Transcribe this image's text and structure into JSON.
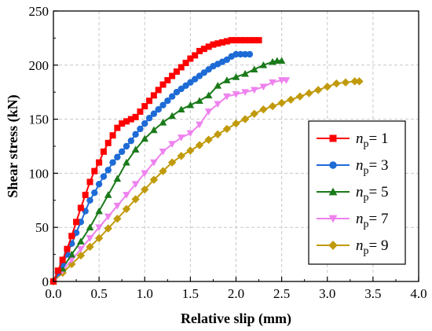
{
  "chart_data": {
    "type": "line",
    "title": "",
    "xlabel": "Relative slip (mm)",
    "ylabel": "Shear stress (kN)",
    "xlim": [
      0,
      4.0
    ],
    "ylim": [
      0,
      250
    ],
    "xticks": [
      "0.0",
      "0.5",
      "1.0",
      "1.5",
      "2.0",
      "2.5",
      "3.0",
      "3.5",
      "4.0"
    ],
    "yticks": [
      "0",
      "50",
      "100",
      "150",
      "200",
      "250"
    ],
    "grid": true,
    "legend_position": "right",
    "series": [
      {
        "name": "np = 1",
        "label_symbol": "n",
        "label_sub": "p",
        "label_value": "= 1",
        "color": "#ff0000",
        "marker": "square",
        "x": [
          0.0,
          0.05,
          0.1,
          0.15,
          0.2,
          0.25,
          0.3,
          0.35,
          0.4,
          0.45,
          0.5,
          0.55,
          0.6,
          0.65,
          0.7,
          0.75,
          0.8,
          0.85,
          0.9,
          0.95,
          1.0,
          1.05,
          1.1,
          1.15,
          1.2,
          1.25,
          1.3,
          1.35,
          1.4,
          1.45,
          1.5,
          1.55,
          1.6,
          1.65,
          1.7,
          1.75,
          1.8,
          1.85,
          1.9,
          1.95,
          2.0,
          2.05,
          2.1,
          2.15,
          2.2,
          2.25
        ],
        "y": [
          0,
          10,
          20,
          30,
          42,
          55,
          68,
          80,
          92,
          102,
          110,
          120,
          128,
          135,
          142,
          146,
          148,
          150,
          152,
          157,
          162,
          167,
          172,
          177,
          182,
          186,
          190,
          194,
          198,
          202,
          206,
          209,
          213,
          215,
          217,
          219,
          220,
          221,
          222,
          223,
          223,
          223,
          223,
          223,
          223,
          223
        ]
      },
      {
        "name": "np = 3",
        "label_symbol": "n",
        "label_sub": "p",
        "label_value": "= 3",
        "color": "#1e6bd6",
        "marker": "circle",
        "x": [
          0.0,
          0.05,
          0.1,
          0.15,
          0.2,
          0.25,
          0.3,
          0.35,
          0.4,
          0.45,
          0.5,
          0.55,
          0.6,
          0.65,
          0.7,
          0.75,
          0.8,
          0.85,
          0.9,
          0.95,
          1.0,
          1.05,
          1.1,
          1.15,
          1.2,
          1.25,
          1.3,
          1.35,
          1.4,
          1.45,
          1.5,
          1.55,
          1.6,
          1.65,
          1.7,
          1.75,
          1.8,
          1.85,
          1.9,
          1.95,
          2.0,
          2.05,
          2.1,
          2.15
        ],
        "y": [
          0,
          8,
          16,
          25,
          35,
          45,
          55,
          65,
          75,
          82,
          90,
          97,
          103,
          110,
          115,
          120,
          125,
          130,
          136,
          141,
          146,
          151,
          155,
          159,
          163,
          167,
          171,
          175,
          178,
          181,
          184,
          187,
          190,
          193,
          196,
          199,
          201,
          203,
          205,
          208,
          210,
          210,
          210,
          210
        ]
      },
      {
        "name": "np = 5",
        "label_symbol": "n",
        "label_sub": "p",
        "label_value": "= 5",
        "color": "#1a7a1a",
        "marker": "triangle-up",
        "x": [
          0.0,
          0.1,
          0.2,
          0.3,
          0.4,
          0.5,
          0.6,
          0.7,
          0.8,
          0.9,
          1.0,
          1.1,
          1.2,
          1.3,
          1.4,
          1.5,
          1.6,
          1.7,
          1.8,
          1.9,
          2.0,
          2.1,
          2.2,
          2.3,
          2.4,
          2.45,
          2.5
        ],
        "y": [
          0,
          12,
          25,
          37,
          50,
          65,
          80,
          95,
          110,
          122,
          132,
          140,
          147,
          153,
          159,
          163,
          167,
          172,
          181,
          186,
          189,
          192,
          196,
          200,
          203,
          204,
          204
        ]
      },
      {
        "name": "np = 7",
        "label_symbol": "n",
        "label_sub": "p",
        "label_value": "= 7",
        "color": "#ee82ee",
        "marker": "triangle-down",
        "x": [
          0.0,
          0.1,
          0.2,
          0.3,
          0.4,
          0.5,
          0.6,
          0.7,
          0.8,
          0.9,
          1.0,
          1.1,
          1.2,
          1.3,
          1.4,
          1.5,
          1.6,
          1.7,
          1.8,
          1.9,
          2.0,
          2.1,
          2.2,
          2.3,
          2.4,
          2.5,
          2.55
        ],
        "y": [
          0,
          10,
          20,
          30,
          40,
          50,
          60,
          70,
          80,
          90,
          100,
          110,
          120,
          127,
          133,
          137,
          145,
          157,
          164,
          171,
          173,
          175,
          177,
          180,
          184,
          186,
          186
        ]
      },
      {
        "name": "np = 9",
        "label_symbol": "n",
        "label_sub": "p",
        "label_value": "= 9",
        "color": "#c19a0b",
        "marker": "diamond",
        "x": [
          0.0,
          0.1,
          0.2,
          0.3,
          0.4,
          0.5,
          0.6,
          0.7,
          0.8,
          0.9,
          1.0,
          1.1,
          1.2,
          1.3,
          1.4,
          1.5,
          1.6,
          1.7,
          1.8,
          1.9,
          2.0,
          2.1,
          2.2,
          2.3,
          2.4,
          2.5,
          2.6,
          2.7,
          2.8,
          2.9,
          3.0,
          3.1,
          3.2,
          3.3,
          3.35
        ],
        "y": [
          0,
          8,
          16,
          24,
          32,
          40,
          49,
          58,
          67,
          76,
          85,
          94,
          102,
          110,
          116,
          121,
          126,
          131,
          136,
          141,
          146,
          150,
          155,
          159,
          162,
          165,
          168,
          171,
          174,
          177,
          180,
          183,
          184,
          185,
          185
        ]
      }
    ]
  }
}
